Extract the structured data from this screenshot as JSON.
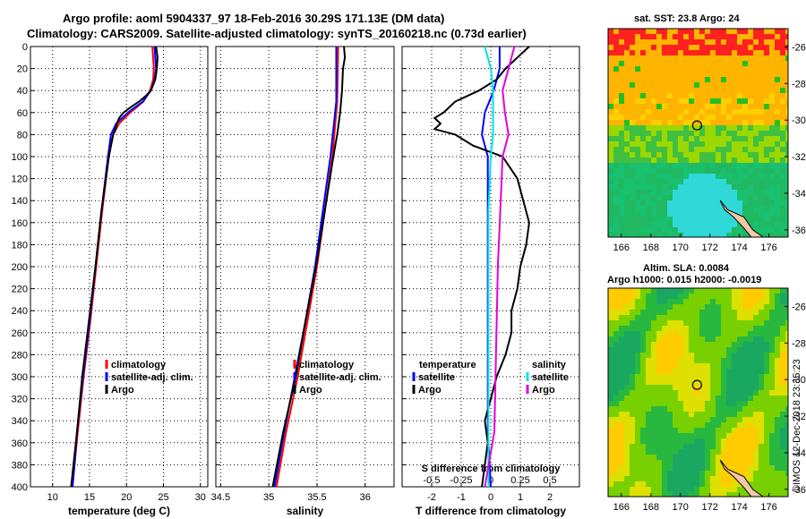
{
  "header": {
    "line1": "Argo profile: aoml 5904337_97 18-Feb-2016 30.29S 171.13E (DM data)",
    "line2": "Climatology: CARS2009. Satellite-adjusted climatology: synTS_20160218.nc (0.73d earlier)"
  },
  "sst_map": {
    "title": "sat. SST: 23.8 Argo: 24"
  },
  "sla_map": {
    "title1": "Altim. SLA: 0.0084",
    "title2": "Argo h1000: 0.015 h2000: -0.0019"
  },
  "stamp": "©IMOS 12-Dec-2018 23:35:23",
  "colors": {
    "climatology": "#ff0000",
    "satellite": "#0000ff",
    "argo": "#000000",
    "sat_salinity": "#00e5e5",
    "argo_salinity": "#e000e0"
  },
  "chart_data": [
    {
      "type": "line",
      "name": "temperature",
      "xlabel": "temperature (deg C)",
      "ylabel": "",
      "xlim": [
        7,
        31
      ],
      "ylim": [
        400,
        0
      ],
      "xticks": [
        10,
        15,
        20,
        25,
        30
      ],
      "yticks": [
        0,
        20,
        40,
        60,
        80,
        100,
        120,
        140,
        160,
        180,
        200,
        220,
        240,
        260,
        280,
        300,
        320,
        340,
        360,
        380,
        400
      ],
      "legend": [
        "climatology",
        "satellite-adj. clim.",
        "Argo"
      ],
      "series": [
        {
          "name": "climatology",
          "depth": [
            0,
            10,
            20,
            30,
            40,
            50,
            60,
            70,
            80,
            100,
            150,
            200,
            250,
            300,
            350,
            400
          ],
          "values": [
            23.5,
            23.6,
            23.7,
            23.6,
            23.2,
            22.3,
            20.5,
            19.0,
            18.2,
            17.6,
            16.7,
            15.9,
            15.1,
            14.2,
            13.4,
            12.7
          ]
        },
        {
          "name": "satellite-adj. clim.",
          "depth": [
            0,
            10,
            20,
            30,
            40,
            50,
            60,
            70,
            80,
            100,
            150,
            200,
            250,
            300,
            350,
            400
          ],
          "values": [
            23.8,
            23.9,
            24.0,
            23.8,
            23.3,
            22.2,
            20.2,
            18.6,
            17.9,
            17.5,
            16.6,
            15.8,
            15.0,
            14.1,
            13.3,
            12.7
          ]
        },
        {
          "name": "Argo",
          "depth": [
            0,
            5,
            10,
            20,
            30,
            40,
            45,
            50,
            55,
            60,
            65,
            70,
            75,
            80,
            90,
            100,
            150,
            200,
            250,
            300,
            350,
            400
          ],
          "values": [
            24.0,
            24.1,
            24.2,
            24.1,
            23.9,
            23.3,
            22.6,
            21.7,
            20.6,
            19.6,
            19.0,
            18.7,
            18.5,
            18.2,
            17.9,
            17.6,
            16.6,
            15.8,
            14.9,
            14.0,
            13.3,
            12.5
          ]
        }
      ]
    },
    {
      "type": "line",
      "name": "salinity",
      "xlabel": "salinity",
      "ylabel": "",
      "xlim": [
        34.45,
        36.3
      ],
      "ylim": [
        400,
        0
      ],
      "xticks": [
        34.5,
        35,
        35.5,
        36
      ],
      "legend": [
        "climatology",
        "satellite-adj. clim.",
        "Argo"
      ],
      "series": [
        {
          "name": "climatology",
          "depth": [
            0,
            50,
            100,
            150,
            200,
            250,
            300,
            350,
            400
          ],
          "values": [
            35.72,
            35.71,
            35.66,
            35.58,
            35.5,
            35.4,
            35.3,
            35.18,
            35.08
          ]
        },
        {
          "name": "satellite-adj. clim.",
          "depth": [
            0,
            50,
            100,
            150,
            200,
            250,
            300,
            350,
            400
          ],
          "values": [
            35.7,
            35.7,
            35.64,
            35.56,
            35.48,
            35.38,
            35.27,
            35.16,
            35.06
          ]
        },
        {
          "name": "Argo",
          "depth": [
            0,
            10,
            20,
            40,
            60,
            80,
            100,
            150,
            200,
            250,
            300,
            350,
            400
          ],
          "values": [
            35.78,
            35.79,
            35.77,
            35.76,
            35.74,
            35.71,
            35.67,
            35.58,
            35.49,
            35.38,
            35.28,
            35.15,
            35.04
          ]
        }
      ]
    },
    {
      "type": "line",
      "name": "differences",
      "xlabel": "T difference from climatology",
      "xlabel_top": "S difference from climatology",
      "xlim": [
        -3,
        3
      ],
      "ylim": [
        400,
        0
      ],
      "xticks": [
        -2,
        -1,
        0,
        1,
        2
      ],
      "xticks_s": [
        -0.5,
        -0.25,
        0,
        0.25,
        0.5
      ],
      "legend_left_title": "temperature",
      "legend_right_title": "salinity",
      "legend": [
        "satellite",
        "Argo",
        "satellite",
        "Argo"
      ],
      "series": [
        {
          "name": "temperature satellite",
          "depth": [
            0,
            20,
            40,
            60,
            80,
            100,
            150,
            200,
            250,
            300,
            350,
            400
          ],
          "values": [
            0.3,
            0.3,
            0.1,
            -0.2,
            -0.3,
            -0.1,
            -0.1,
            -0.1,
            -0.1,
            -0.1,
            -0.1,
            0.0
          ]
        },
        {
          "name": "temperature Argo",
          "depth": [
            0,
            5,
            10,
            20,
            30,
            40,
            50,
            60,
            65,
            70,
            75,
            80,
            90,
            100,
            120,
            140,
            160,
            180,
            200,
            220,
            240,
            260,
            280,
            300,
            320,
            340,
            360,
            380,
            400
          ],
          "values": [
            1.3,
            1.1,
            0.9,
            0.5,
            0.2,
            -0.4,
            -1.2,
            -1.6,
            -1.9,
            -1.7,
            -1.9,
            -1.2,
            -0.6,
            0.4,
            0.9,
            1.1,
            1.3,
            1.2,
            1.0,
            0.9,
            0.7,
            0.7,
            0.5,
            0.2,
            0.0,
            -0.2,
            -0.1,
            -0.2,
            -0.3
          ]
        },
        {
          "name": "salinity satellite",
          "depth": [
            0,
            20,
            40,
            60,
            80,
            100,
            150,
            200,
            250,
            300,
            350,
            400
          ],
          "values": [
            -0.05,
            0.0,
            0.02,
            0.02,
            0.02,
            0.0,
            -0.02,
            -0.02,
            -0.02,
            -0.02,
            -0.02,
            -0.02
          ]
        },
        {
          "name": "salinity Argo",
          "depth": [
            0,
            20,
            40,
            60,
            80,
            100,
            150,
            200,
            250,
            300,
            350,
            400
          ],
          "values": [
            0.2,
            0.15,
            0.1,
            0.12,
            0.15,
            0.1,
            0.08,
            0.06,
            0.05,
            0.04,
            0.03,
            -0.05
          ]
        }
      ]
    },
    {
      "type": "heatmap",
      "name": "sst map",
      "title": "sat. SST: 23.8 Argo: 24",
      "xticks": [
        166,
        168,
        170,
        172,
        174,
        176
      ],
      "yticks": [
        -26,
        -28,
        -30,
        -32,
        -34,
        -36
      ],
      "argo_position": [
        171.13,
        -30.29
      ]
    },
    {
      "type": "heatmap",
      "name": "sla map",
      "title": "Altim. SLA: 0.0084",
      "subtitle": "Argo h1000: 0.015 h2000: -0.0019",
      "xticks": [
        166,
        168,
        170,
        172,
        174,
        176
      ],
      "yticks": [
        -26,
        -28,
        -30,
        -32,
        -34,
        -36
      ],
      "argo_position": [
        171.13,
        -30.29
      ]
    }
  ]
}
